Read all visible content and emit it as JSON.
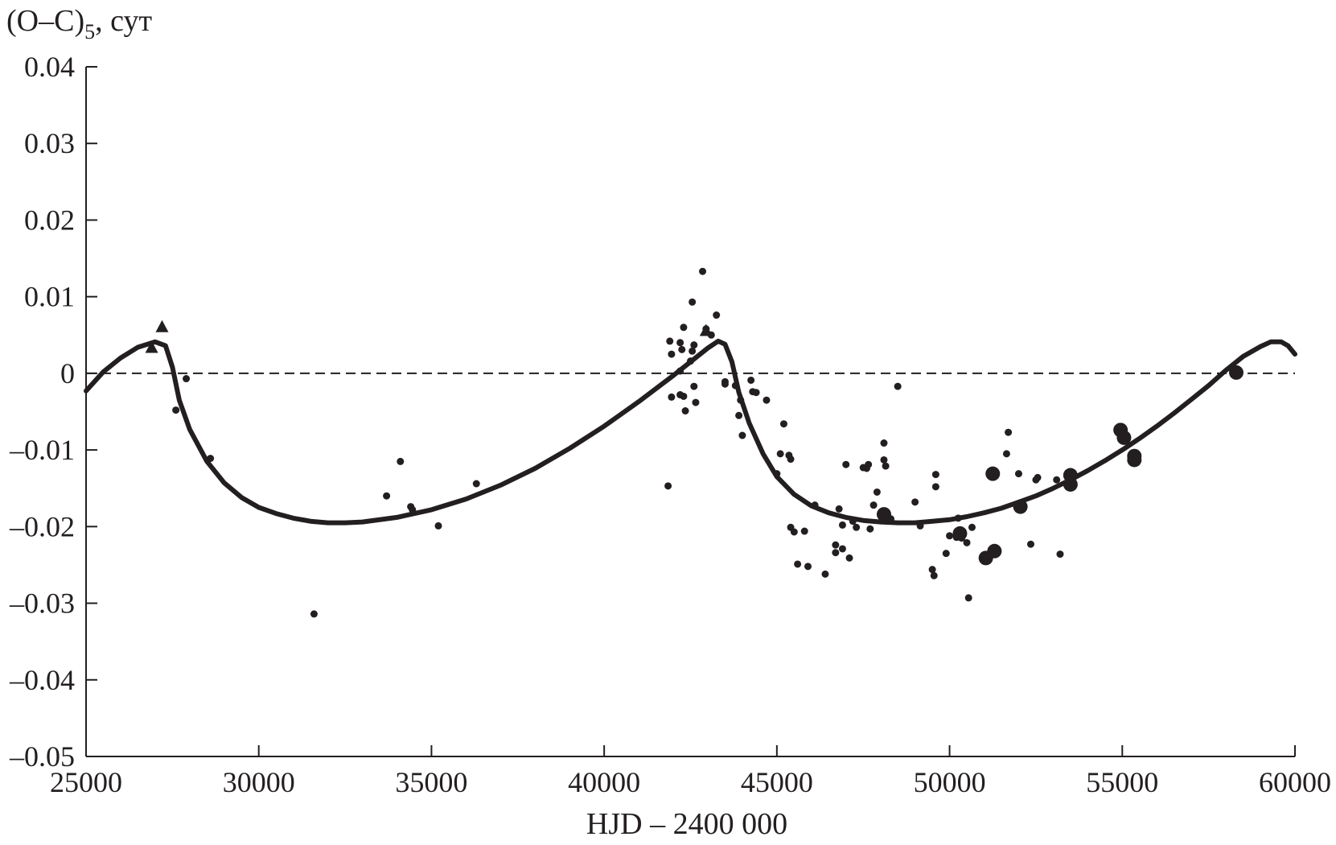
{
  "chart_data": {
    "type": "scatter",
    "title": "",
    "ylabel_main": "(O–C)",
    "ylabel_sub": "5",
    "ylabel_unit": ", сут",
    "xlabel": "HJD – 2400 000",
    "xlim": [
      25000,
      60000
    ],
    "ylim": [
      -0.05,
      0.04
    ],
    "x_ticks": [
      25000,
      30000,
      35000,
      40000,
      45000,
      50000,
      55000,
      60000
    ],
    "x_tick_labels": [
      "25000",
      "30000",
      "35000",
      "40000",
      "45000",
      "50000",
      "55000",
      "60000"
    ],
    "y_ticks": [
      0.04,
      0.03,
      0.02,
      0.01,
      0,
      -0.01,
      -0.02,
      -0.03,
      -0.04,
      -0.05
    ],
    "y_tick_labels": [
      "0.04",
      "0.03",
      "0.02",
      "0.01",
      "0",
      "–0.01",
      "–0.02",
      "–0.03",
      "–0.04",
      "–0.05"
    ],
    "reference_line": {
      "y": 0,
      "style": "dashed"
    },
    "colors": {
      "ink": "#231f20",
      "background": "#ffffff"
    },
    "series": [
      {
        "marker": "triangle",
        "points": [
          [
            26900,
            0.0033
          ],
          [
            27200,
            0.006
          ],
          [
            42950,
            0.0055
          ]
        ]
      },
      {
        "marker": "small-dot",
        "points": [
          [
            27600,
            -0.0048
          ],
          [
            27900,
            -0.0007
          ],
          [
            28600,
            -0.0111
          ],
          [
            31600,
            -0.0314
          ],
          [
            33700,
            -0.016
          ],
          [
            34100,
            -0.0115
          ],
          [
            34400,
            -0.0174
          ],
          [
            34450,
            -0.0178
          ],
          [
            35200,
            -0.0199
          ],
          [
            36300,
            -0.0144
          ],
          [
            41900,
            0.0042
          ],
          [
            41950,
            0.0025
          ],
          [
            41950,
            -0.0031
          ],
          [
            41850,
            -0.0147
          ],
          [
            42200,
            0.004
          ],
          [
            42250,
            0.0031
          ],
          [
            42300,
            0.006
          ],
          [
            42200,
            0.0003
          ],
          [
            42200,
            -0.0028
          ],
          [
            42300,
            -0.003
          ],
          [
            42350,
            -0.0049
          ],
          [
            42500,
            0.0016
          ],
          [
            42550,
            0.0093
          ],
          [
            42550,
            0.0029
          ],
          [
            42600,
            0.0037
          ],
          [
            42600,
            -0.0017
          ],
          [
            42650,
            -0.0038
          ],
          [
            42850,
            0.0133
          ],
          [
            42950,
            0.0058
          ],
          [
            43250,
            0.0076
          ],
          [
            43100,
            0.005
          ],
          [
            43500,
            -0.0011
          ],
          [
            43500,
            -0.0014
          ],
          [
            43800,
            -0.0016
          ],
          [
            43900,
            -0.0055
          ],
          [
            43950,
            -0.0035
          ],
          [
            44000,
            -0.0081
          ],
          [
            44250,
            -0.0009
          ],
          [
            44300,
            -0.0024
          ],
          [
            44400,
            -0.0025
          ],
          [
            44700,
            -0.0035
          ],
          [
            45000,
            -0.0131
          ],
          [
            45100,
            -0.0105
          ],
          [
            45200,
            -0.0066
          ],
          [
            45350,
            -0.0107
          ],
          [
            45400,
            -0.0112
          ],
          [
            45400,
            -0.0201
          ],
          [
            45500,
            -0.0207
          ],
          [
            45600,
            -0.0249
          ],
          [
            45800,
            -0.0206
          ],
          [
            45900,
            -0.0252
          ],
          [
            46100,
            -0.0172
          ],
          [
            46400,
            -0.0262
          ],
          [
            46700,
            -0.0224
          ],
          [
            46700,
            -0.0234
          ],
          [
            46800,
            -0.0177
          ],
          [
            46900,
            -0.0198
          ],
          [
            46900,
            -0.0229
          ],
          [
            47000,
            -0.0119
          ],
          [
            47100,
            -0.0241
          ],
          [
            47200,
            -0.0193
          ],
          [
            47300,
            -0.0201
          ],
          [
            47500,
            -0.0123
          ],
          [
            47600,
            -0.0124
          ],
          [
            47650,
            -0.0119
          ],
          [
            47700,
            -0.0203
          ],
          [
            47800,
            -0.0172
          ],
          [
            47900,
            -0.0155
          ],
          [
            48100,
            -0.0091
          ],
          [
            48100,
            -0.0113
          ],
          [
            48150,
            -0.0121
          ],
          [
            48300,
            -0.019
          ],
          [
            48500,
            -0.0017
          ],
          [
            49000,
            -0.0168
          ],
          [
            49150,
            -0.0199
          ],
          [
            49500,
            -0.0256
          ],
          [
            49550,
            -0.0264
          ],
          [
            49600,
            -0.0132
          ],
          [
            49600,
            -0.0148
          ],
          [
            49900,
            -0.0235
          ],
          [
            50000,
            -0.0212
          ],
          [
            50200,
            -0.0214
          ],
          [
            50250,
            -0.0189
          ],
          [
            50350,
            -0.0215
          ],
          [
            50500,
            -0.0221
          ],
          [
            50550,
            -0.0293
          ],
          [
            50650,
            -0.0201
          ],
          [
            51650,
            -0.0105
          ],
          [
            51700,
            -0.0077
          ],
          [
            52000,
            -0.0131
          ],
          [
            52350,
            -0.0223
          ],
          [
            52500,
            -0.0139
          ],
          [
            52550,
            -0.0136
          ],
          [
            53100,
            -0.0139
          ],
          [
            53200,
            -0.0236
          ]
        ]
      },
      {
        "marker": "large-dot",
        "points": [
          [
            48100,
            -0.0184
          ],
          [
            50300,
            -0.0209
          ],
          [
            51050,
            -0.0241
          ],
          [
            51250,
            -0.0131
          ],
          [
            51300,
            -0.0232
          ],
          [
            52050,
            -0.0174
          ],
          [
            53500,
            -0.0133
          ],
          [
            53500,
            -0.0145
          ],
          [
            54950,
            -0.0074
          ],
          [
            55050,
            -0.0084
          ],
          [
            55350,
            -0.0108
          ],
          [
            55350,
            -0.0113
          ],
          [
            58300,
            0.0001
          ]
        ]
      }
    ],
    "fit_curve": {
      "points": [
        [
          25000,
          -0.0023
        ],
        [
          25500,
          0.0002
        ],
        [
          26000,
          0.002
        ],
        [
          26500,
          0.0034
        ],
        [
          27000,
          0.0041
        ],
        [
          27300,
          0.0036
        ],
        [
          27500,
          0.0008
        ],
        [
          27700,
          -0.0035
        ],
        [
          28000,
          -0.0073
        ],
        [
          28500,
          -0.0115
        ],
        [
          29000,
          -0.0143
        ],
        [
          29500,
          -0.0162
        ],
        [
          30000,
          -0.0175
        ],
        [
          30500,
          -0.0183
        ],
        [
          31000,
          -0.0189
        ],
        [
          31500,
          -0.0193
        ],
        [
          32000,
          -0.0195
        ],
        [
          32500,
          -0.0195
        ],
        [
          33000,
          -0.0194
        ],
        [
          34000,
          -0.0188
        ],
        [
          35000,
          -0.0178
        ],
        [
          36000,
          -0.0164
        ],
        [
          37000,
          -0.0146
        ],
        [
          38000,
          -0.0124
        ],
        [
          39000,
          -0.0098
        ],
        [
          40000,
          -0.0069
        ],
        [
          41000,
          -0.0037
        ],
        [
          42000,
          -0.0003
        ],
        [
          42500,
          0.0015
        ],
        [
          43000,
          0.0033
        ],
        [
          43300,
          0.0042
        ],
        [
          43500,
          0.0038
        ],
        [
          43700,
          0.0015
        ],
        [
          43900,
          -0.0025
        ],
        [
          44200,
          -0.0065
        ],
        [
          44600,
          -0.0105
        ],
        [
          45000,
          -0.0135
        ],
        [
          45500,
          -0.0158
        ],
        [
          46000,
          -0.0173
        ],
        [
          46500,
          -0.0182
        ],
        [
          47000,
          -0.0188
        ],
        [
          47500,
          -0.0192
        ],
        [
          48000,
          -0.0194
        ],
        [
          48500,
          -0.0195
        ],
        [
          49000,
          -0.0195
        ],
        [
          49500,
          -0.0193
        ],
        [
          50000,
          -0.0191
        ],
        [
          50500,
          -0.0187
        ],
        [
          51000,
          -0.0182
        ],
        [
          51500,
          -0.0176
        ],
        [
          52000,
          -0.0168
        ],
        [
          52500,
          -0.016
        ],
        [
          53000,
          -0.015
        ],
        [
          53500,
          -0.0139
        ],
        [
          54000,
          -0.0127
        ],
        [
          54500,
          -0.0114
        ],
        [
          55000,
          -0.01
        ],
        [
          55500,
          -0.0085
        ],
        [
          56000,
          -0.0069
        ],
        [
          56500,
          -0.0052
        ],
        [
          57000,
          -0.0034
        ],
        [
          57500,
          -0.0016
        ],
        [
          58000,
          0.0004
        ],
        [
          58500,
          0.0022
        ],
        [
          59000,
          0.0035
        ],
        [
          59300,
          0.0041
        ],
        [
          59600,
          0.0041
        ],
        [
          59800,
          0.0036
        ],
        [
          60000,
          0.0025
        ]
      ]
    }
  }
}
